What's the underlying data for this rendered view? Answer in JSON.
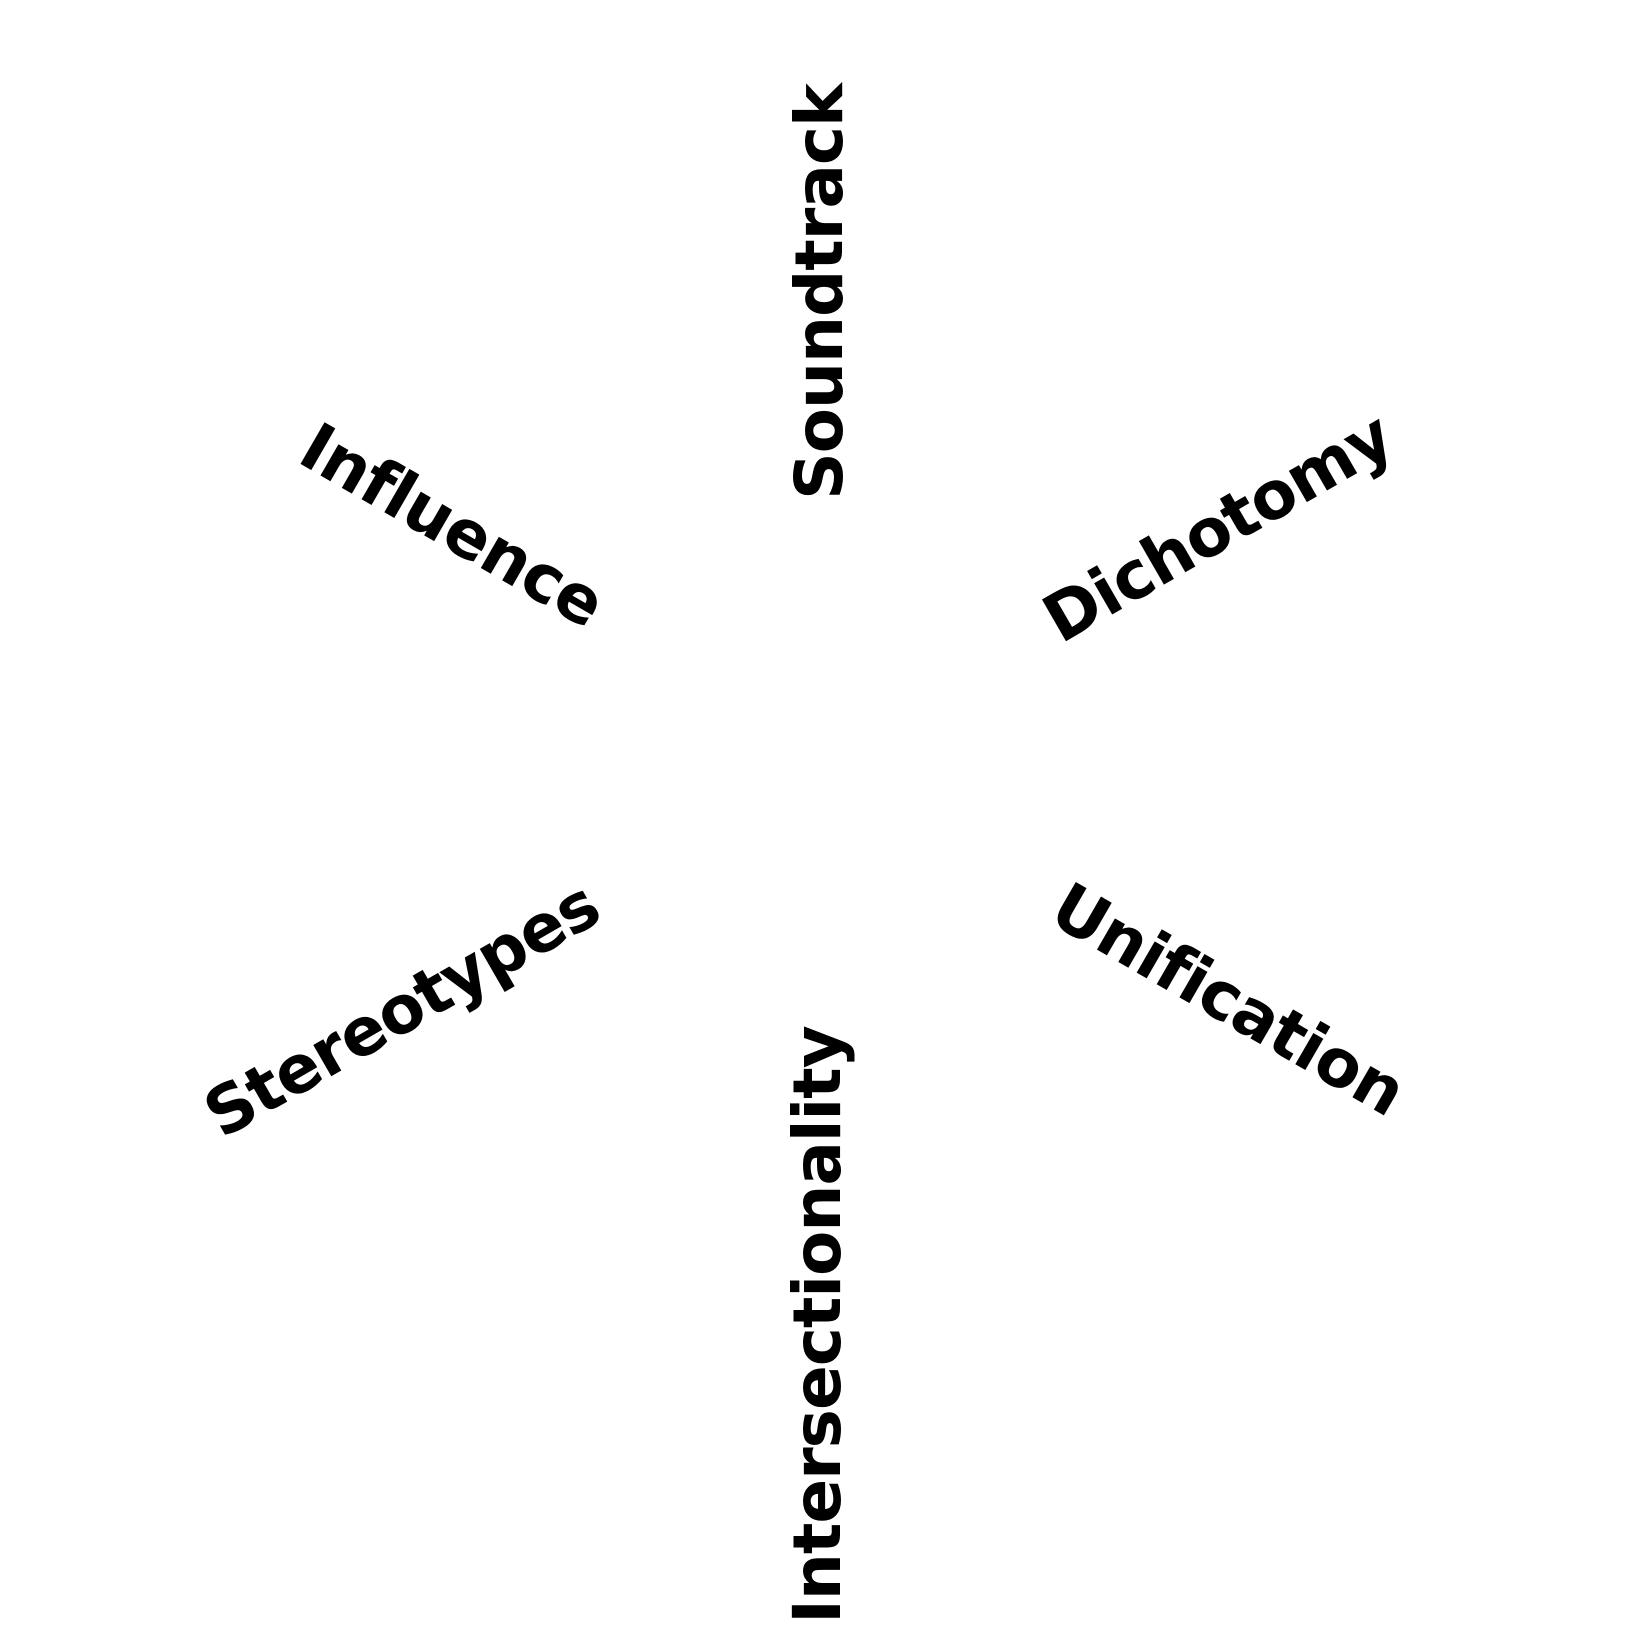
{
  "words": {
    "top": "Soundtrack",
    "upper_left": "Influence",
    "upper_right": "Dichotomy",
    "lower_left": "Stereotypes",
    "lower_right": "Unification",
    "bottom": "Intersectionality"
  },
  "colors": {
    "text": "#000000",
    "background": "#ffffff"
  }
}
